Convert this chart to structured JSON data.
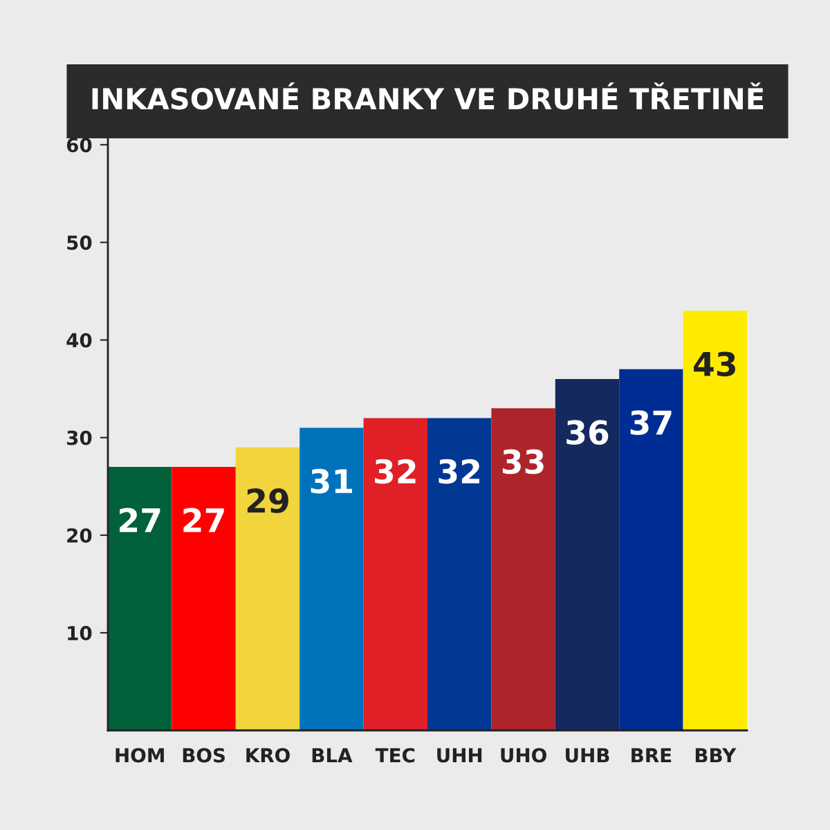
{
  "chart_data": {
    "type": "bar",
    "title": "INKASOVANÉ BRANKY VE DRUHÉ TŘETINĚ",
    "categories": [
      "HOM",
      "BOS",
      "KRO",
      "BLA",
      "TEC",
      "UHH",
      "UHO",
      "UHB",
      "BRE",
      "BBY"
    ],
    "values": [
      27,
      27,
      29,
      31,
      32,
      32,
      33,
      36,
      37,
      43
    ],
    "colors": [
      "#00613a",
      "#ff0000",
      "#f2d53c",
      "#0072bb",
      "#e01f26",
      "#003893",
      "#ad252a",
      "#14295e",
      "#002d93",
      "#ffeb00"
    ],
    "ylim": [
      0,
      62.5
    ],
    "yticks": [
      10,
      20,
      30,
      40,
      50,
      60
    ],
    "data_labels": true,
    "grid": false,
    "legend": false
  }
}
